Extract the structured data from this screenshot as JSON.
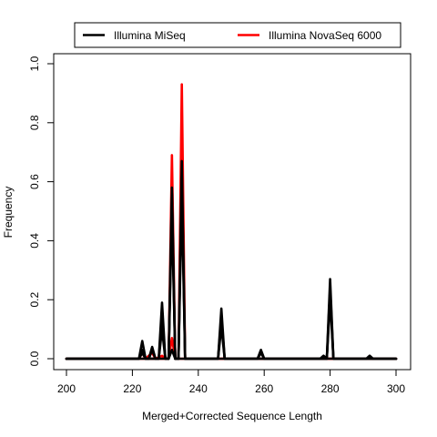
{
  "chart_data": {
    "type": "line",
    "xlabel": "Merged+Corrected Sequence Length",
    "ylabel": "Frequency",
    "xlim": [
      200,
      300
    ],
    "ylim": [
      0,
      1
    ],
    "x_ticks": [
      200,
      220,
      240,
      260,
      280,
      300
    ],
    "y_ticks": [
      0.0,
      0.2,
      0.4,
      0.6,
      0.8,
      1.0
    ],
    "x_tick_labels": [
      "200",
      "220",
      "240",
      "260",
      "280",
      "300"
    ],
    "y_tick_labels": [
      "0.0",
      "0.2",
      "0.4",
      "0.6",
      "0.8",
      "1.0"
    ],
    "grid": false,
    "legend": {
      "position": "top",
      "entries": [
        {
          "label": "Illumina MiSeq",
          "color": "#000000"
        },
        {
          "label": "Illumina NovaSeq 6000",
          "color": "#ff0000"
        }
      ]
    },
    "series": [
      {
        "color": "#ff0000",
        "points": [
          [
            200,
            0
          ],
          [
            222,
            0
          ],
          [
            223,
            0.02
          ],
          [
            224,
            0
          ],
          [
            226,
            0.02
          ],
          [
            227,
            0
          ],
          [
            229,
            0.01
          ],
          [
            230,
            0
          ],
          [
            231,
            0
          ],
          [
            232,
            0.69
          ],
          [
            233,
            0
          ],
          [
            234,
            0
          ],
          [
            235,
            0.93
          ],
          [
            236,
            0
          ],
          [
            300,
            0
          ]
        ]
      },
      {
        "color": "#ff0000",
        "points": [
          [
            200,
            0
          ],
          [
            231,
            0
          ],
          [
            232,
            0.07
          ],
          [
            233,
            0
          ],
          [
            300,
            0
          ]
        ]
      },
      {
        "color": "#000000",
        "points": [
          [
            200,
            0
          ],
          [
            222,
            0
          ],
          [
            223,
            0.06
          ],
          [
            224,
            0
          ],
          [
            225,
            0
          ],
          [
            226,
            0.04
          ],
          [
            227,
            0
          ],
          [
            228,
            0
          ],
          [
            229,
            0.19
          ],
          [
            230,
            0
          ],
          [
            231,
            0
          ],
          [
            232,
            0.58
          ],
          [
            233,
            0
          ],
          [
            234,
            0
          ],
          [
            235,
            0.67
          ],
          [
            236,
            0
          ],
          [
            246,
            0
          ],
          [
            247,
            0.17
          ],
          [
            248,
            0
          ],
          [
            258,
            0
          ],
          [
            259,
            0.03
          ],
          [
            260,
            0
          ],
          [
            277,
            0
          ],
          [
            278,
            0.01
          ],
          [
            279,
            0
          ],
          [
            280,
            0.27
          ],
          [
            281,
            0
          ],
          [
            291,
            0
          ],
          [
            292,
            0.01
          ],
          [
            293,
            0
          ],
          [
            300,
            0
          ]
        ]
      },
      {
        "color": "#000000",
        "points": [
          [
            200,
            0
          ],
          [
            222,
            0
          ],
          [
            223,
            0.03
          ],
          [
            224,
            0
          ],
          [
            225,
            0
          ],
          [
            226,
            0.03
          ],
          [
            227,
            0
          ],
          [
            228,
            0
          ],
          [
            229,
            0.14
          ],
          [
            230,
            0
          ],
          [
            231,
            0
          ],
          [
            232,
            0.56
          ],
          [
            233,
            0
          ],
          [
            234,
            0
          ],
          [
            235,
            0.62
          ],
          [
            236,
            0
          ],
          [
            246,
            0
          ],
          [
            247,
            0.14
          ],
          [
            248,
            0
          ],
          [
            258,
            0
          ],
          [
            259,
            0.02
          ],
          [
            260,
            0
          ],
          [
            279,
            0
          ],
          [
            280,
            0.24
          ],
          [
            281,
            0
          ],
          [
            300,
            0
          ]
        ]
      },
      {
        "color": "#000000",
        "points": [
          [
            200,
            0
          ],
          [
            222,
            0
          ],
          [
            223,
            0.02
          ],
          [
            224,
            0
          ],
          [
            228,
            0
          ],
          [
            229,
            0.1
          ],
          [
            230,
            0
          ],
          [
            231,
            0
          ],
          [
            232,
            0.5
          ],
          [
            233,
            0
          ],
          [
            234,
            0
          ],
          [
            235,
            0.55
          ],
          [
            236,
            0
          ],
          [
            246,
            0
          ],
          [
            247,
            0.11
          ],
          [
            248,
            0
          ],
          [
            279,
            0
          ],
          [
            280,
            0.2
          ],
          [
            281,
            0
          ],
          [
            300,
            0
          ]
        ]
      },
      {
        "color": "#000000",
        "points": [
          [
            200,
            0
          ],
          [
            231,
            0
          ],
          [
            232,
            0.03
          ],
          [
            233,
            0
          ],
          [
            300,
            0
          ]
        ]
      }
    ]
  }
}
